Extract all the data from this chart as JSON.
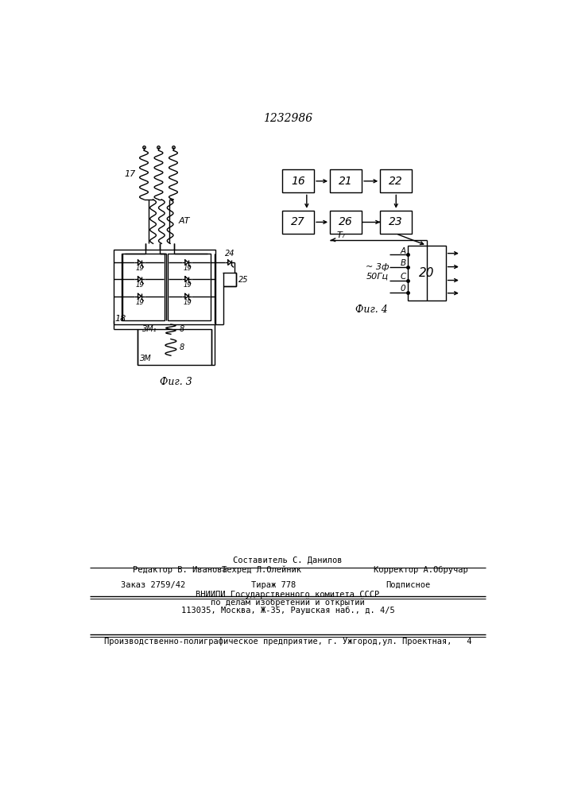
{
  "title": "1232986",
  "fig3_caption": "Фиг. 3",
  "fig4_caption": "Фиг. 4",
  "footer_line1": "Составитель С. Данилов",
  "footer_line2_left": "Редактор В. Иванова",
  "footer_line2_mid": "Техред Л.Олейник",
  "footer_line2_right": "Корректор А.Обручар",
  "footer_line3_left": "Заказ 2759/42",
  "footer_line3_mid": "Тираж 778",
  "footer_line3_right": "Подписное",
  "footer_line4": "ВНИИПИ Государственного комитета СССР",
  "footer_line5": "по делам изобретений и открытий",
  "footer_line6": "113035, Москва, Ж-35, Раушская наб., д. 4/5",
  "footer_line7": "Производственно-полиграфическое предприятие, г. Ужгород,ул. Проектная,   4",
  "bg_color": "#ffffff",
  "lc": "#000000"
}
